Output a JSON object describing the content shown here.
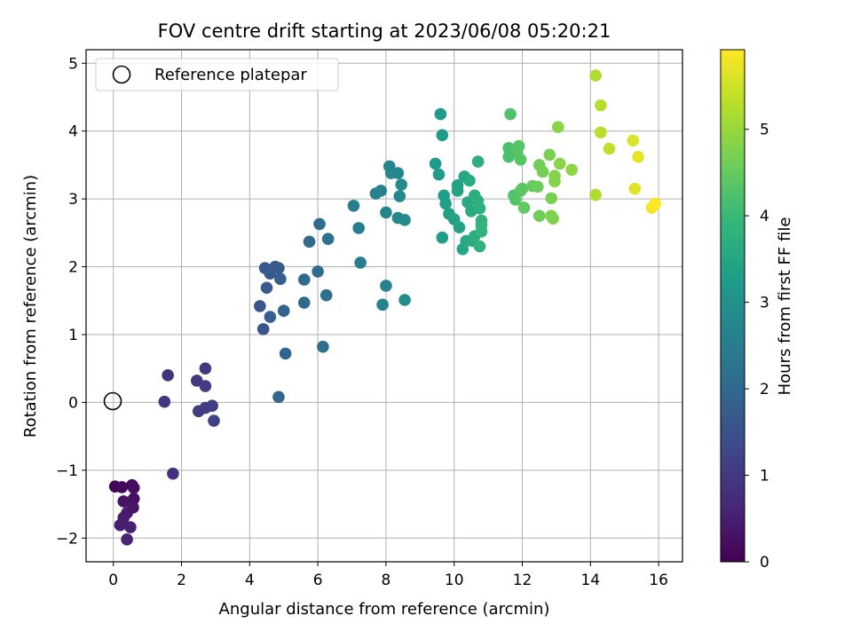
{
  "chart_data": {
    "type": "scatter",
    "title": "FOV centre drift starting at 2023/06/08 05:20:21",
    "xlabel": "Angular distance from reference (arcmin)",
    "ylabel": "Rotation from reference (arcmin)",
    "xlim": [
      -0.8,
      16.7
    ],
    "ylim": [
      -2.35,
      5.2
    ],
    "xticks": [
      0,
      2,
      4,
      6,
      8,
      10,
      12,
      14,
      16
    ],
    "xtick_labels": [
      "0",
      "2",
      "4",
      "6",
      "8",
      "10",
      "12",
      "14",
      "16"
    ],
    "yticks": [
      -2,
      -1,
      0,
      1,
      2,
      3,
      4,
      5
    ],
    "ytick_labels": [
      "−2",
      "−1",
      "0",
      "1",
      "2",
      "3",
      "4",
      "5"
    ],
    "grid": true,
    "legend": {
      "position": "top-left",
      "label": "Reference platepar"
    },
    "reference_point": {
      "x": 0,
      "y": 0
    },
    "colormap": "viridis",
    "colorbar": {
      "label": "Hours from first FF file",
      "range": [
        0,
        5.92
      ],
      "ticks": [
        0,
        1,
        2,
        3,
        4,
        5
      ],
      "tick_labels": [
        "0",
        "1",
        "2",
        "3",
        "4",
        "5"
      ],
      "stops": [
        "#440154",
        "#482878",
        "#3e4989",
        "#31688e",
        "#26828e",
        "#1f9e89",
        "#35b779",
        "#6ece58",
        "#b5de2b",
        "#fde725"
      ]
    },
    "points": [
      {
        "x": 0.05,
        "y": -1.24,
        "h": 0.05
      },
      {
        "x": 0.25,
        "y": -1.25,
        "h": 0.1
      },
      {
        "x": 0.55,
        "y": -1.22,
        "h": 0.15
      },
      {
        "x": 0.6,
        "y": -1.26,
        "h": 0.2
      },
      {
        "x": 0.6,
        "y": -1.42,
        "h": 0.25
      },
      {
        "x": 0.3,
        "y": -1.46,
        "h": 0.3
      },
      {
        "x": 0.58,
        "y": -1.55,
        "h": 0.35
      },
      {
        "x": 0.4,
        "y": -1.63,
        "h": 0.4
      },
      {
        "x": 0.3,
        "y": -1.7,
        "h": 0.45
      },
      {
        "x": 0.2,
        "y": -1.81,
        "h": 0.5
      },
      {
        "x": 0.5,
        "y": -1.84,
        "h": 0.55
      },
      {
        "x": 0.4,
        "y": -2.02,
        "h": 0.6
      },
      {
        "x": 1.75,
        "y": -1.05,
        "h": 0.8
      },
      {
        "x": 1.6,
        "y": 0.4,
        "h": 0.9
      },
      {
        "x": 1.5,
        "y": 0.01,
        "h": 0.95
      },
      {
        "x": 2.45,
        "y": 0.32,
        "h": 1.0
      },
      {
        "x": 2.7,
        "y": 0.5,
        "h": 1.0
      },
      {
        "x": 2.7,
        "y": 0.24,
        "h": 1.05
      },
      {
        "x": 2.5,
        "y": -0.13,
        "h": 1.05
      },
      {
        "x": 2.7,
        "y": -0.08,
        "h": 1.1
      },
      {
        "x": 2.9,
        "y": -0.05,
        "h": 1.1
      },
      {
        "x": 2.95,
        "y": -0.27,
        "h": 1.15
      },
      {
        "x": 4.3,
        "y": 1.42,
        "h": 1.6
      },
      {
        "x": 4.4,
        "y": 1.08,
        "h": 1.6
      },
      {
        "x": 4.45,
        "y": 1.98,
        "h": 1.65
      },
      {
        "x": 4.6,
        "y": 1.9,
        "h": 1.65
      },
      {
        "x": 4.5,
        "y": 1.69,
        "h": 1.7
      },
      {
        "x": 4.75,
        "y": 2.0,
        "h": 1.7
      },
      {
        "x": 4.85,
        "y": 1.98,
        "h": 1.75
      },
      {
        "x": 4.9,
        "y": 1.82,
        "h": 1.8
      },
      {
        "x": 4.6,
        "y": 1.26,
        "h": 1.8
      },
      {
        "x": 5.0,
        "y": 1.35,
        "h": 1.85
      },
      {
        "x": 5.05,
        "y": 0.72,
        "h": 1.9
      },
      {
        "x": 4.85,
        "y": 0.08,
        "h": 1.95
      },
      {
        "x": 5.6,
        "y": 1.81,
        "h": 2.0
      },
      {
        "x": 5.6,
        "y": 1.47,
        "h": 2.0
      },
      {
        "x": 5.75,
        "y": 2.37,
        "h": 2.05
      },
      {
        "x": 6.0,
        "y": 1.93,
        "h": 2.1
      },
      {
        "x": 6.05,
        "y": 2.63,
        "h": 2.1
      },
      {
        "x": 6.15,
        "y": 0.82,
        "h": 2.15
      },
      {
        "x": 6.25,
        "y": 1.58,
        "h": 2.15
      },
      {
        "x": 6.3,
        "y": 2.41,
        "h": 2.2
      },
      {
        "x": 7.05,
        "y": 2.9,
        "h": 2.5
      },
      {
        "x": 7.2,
        "y": 2.57,
        "h": 2.5
      },
      {
        "x": 7.25,
        "y": 2.06,
        "h": 2.55
      },
      {
        "x": 7.7,
        "y": 3.08,
        "h": 2.6
      },
      {
        "x": 7.85,
        "y": 3.12,
        "h": 2.6
      },
      {
        "x": 7.9,
        "y": 1.44,
        "h": 2.65
      },
      {
        "x": 8.0,
        "y": 1.72,
        "h": 2.65
      },
      {
        "x": 8.0,
        "y": 2.8,
        "h": 2.7
      },
      {
        "x": 8.1,
        "y": 3.48,
        "h": 2.7
      },
      {
        "x": 8.15,
        "y": 3.38,
        "h": 2.75
      },
      {
        "x": 8.35,
        "y": 3.38,
        "h": 2.75
      },
      {
        "x": 8.35,
        "y": 2.72,
        "h": 2.8
      },
      {
        "x": 8.4,
        "y": 3.04,
        "h": 2.8
      },
      {
        "x": 8.45,
        "y": 3.21,
        "h": 2.85
      },
      {
        "x": 8.55,
        "y": 2.69,
        "h": 2.85
      },
      {
        "x": 8.55,
        "y": 1.51,
        "h": 2.9
      },
      {
        "x": 9.45,
        "y": 3.52,
        "h": 3.2
      },
      {
        "x": 9.55,
        "y": 3.36,
        "h": 3.2
      },
      {
        "x": 9.6,
        "y": 4.25,
        "h": 3.25
      },
      {
        "x": 9.65,
        "y": 3.94,
        "h": 3.25
      },
      {
        "x": 9.65,
        "y": 2.43,
        "h": 3.3
      },
      {
        "x": 9.7,
        "y": 3.05,
        "h": 3.3
      },
      {
        "x": 9.75,
        "y": 2.93,
        "h": 3.35
      },
      {
        "x": 9.85,
        "y": 2.78,
        "h": 3.35
      },
      {
        "x": 10.0,
        "y": 2.7,
        "h": 3.4
      },
      {
        "x": 10.1,
        "y": 3.2,
        "h": 3.4
      },
      {
        "x": 10.1,
        "y": 3.12,
        "h": 3.45
      },
      {
        "x": 10.15,
        "y": 2.58,
        "h": 3.45
      },
      {
        "x": 10.25,
        "y": 2.26,
        "h": 3.5
      },
      {
        "x": 10.3,
        "y": 3.33,
        "h": 3.5
      },
      {
        "x": 10.35,
        "y": 2.38,
        "h": 3.55
      },
      {
        "x": 10.4,
        "y": 2.95,
        "h": 3.55
      },
      {
        "x": 10.45,
        "y": 3.27,
        "h": 3.6
      },
      {
        "x": 10.5,
        "y": 2.82,
        "h": 3.6
      },
      {
        "x": 10.55,
        "y": 2.38,
        "h": 3.65
      },
      {
        "x": 10.6,
        "y": 2.45,
        "h": 3.65
      },
      {
        "x": 10.6,
        "y": 3.05,
        "h": 3.7
      },
      {
        "x": 10.7,
        "y": 3.55,
        "h": 3.7
      },
      {
        "x": 10.7,
        "y": 2.97,
        "h": 3.75
      },
      {
        "x": 10.75,
        "y": 2.86,
        "h": 3.75
      },
      {
        "x": 10.75,
        "y": 2.3,
        "h": 3.8
      },
      {
        "x": 10.8,
        "y": 2.68,
        "h": 3.8
      },
      {
        "x": 10.8,
        "y": 2.52,
        "h": 3.85
      },
      {
        "x": 10.8,
        "y": 2.61,
        "h": 3.85
      },
      {
        "x": 11.6,
        "y": 3.75,
        "h": 4.2
      },
      {
        "x": 11.6,
        "y": 3.62,
        "h": 4.2
      },
      {
        "x": 11.65,
        "y": 4.25,
        "h": 4.25
      },
      {
        "x": 11.75,
        "y": 3.05,
        "h": 4.25
      },
      {
        "x": 11.8,
        "y": 2.99,
        "h": 4.3
      },
      {
        "x": 11.85,
        "y": 3.68,
        "h": 4.3
      },
      {
        "x": 11.9,
        "y": 3.78,
        "h": 4.35
      },
      {
        "x": 11.95,
        "y": 3.58,
        "h": 4.35
      },
      {
        "x": 11.95,
        "y": 3.12,
        "h": 4.4
      },
      {
        "x": 12.0,
        "y": 3.15,
        "h": 4.4
      },
      {
        "x": 12.05,
        "y": 2.87,
        "h": 4.45
      },
      {
        "x": 12.3,
        "y": 3.19,
        "h": 4.5
      },
      {
        "x": 12.45,
        "y": 3.18,
        "h": 4.55
      },
      {
        "x": 12.5,
        "y": 2.75,
        "h": 4.6
      },
      {
        "x": 12.5,
        "y": 3.5,
        "h": 4.6
      },
      {
        "x": 12.6,
        "y": 3.4,
        "h": 4.65
      },
      {
        "x": 12.8,
        "y": 3.65,
        "h": 4.7
      },
      {
        "x": 12.85,
        "y": 3.01,
        "h": 4.7
      },
      {
        "x": 12.85,
        "y": 2.75,
        "h": 4.75
      },
      {
        "x": 12.9,
        "y": 2.71,
        "h": 4.75
      },
      {
        "x": 12.95,
        "y": 3.34,
        "h": 4.8
      },
      {
        "x": 12.95,
        "y": 3.26,
        "h": 4.8
      },
      {
        "x": 13.05,
        "y": 4.06,
        "h": 4.85
      },
      {
        "x": 13.1,
        "y": 3.52,
        "h": 4.85
      },
      {
        "x": 13.45,
        "y": 3.43,
        "h": 4.9
      },
      {
        "x": 14.15,
        "y": 4.82,
        "h": 5.2
      },
      {
        "x": 14.15,
        "y": 3.06,
        "h": 5.2
      },
      {
        "x": 14.3,
        "y": 4.38,
        "h": 5.25
      },
      {
        "x": 14.3,
        "y": 3.98,
        "h": 5.3
      },
      {
        "x": 14.55,
        "y": 3.74,
        "h": 5.35
      },
      {
        "x": 15.25,
        "y": 3.86,
        "h": 5.6
      },
      {
        "x": 15.3,
        "y": 3.15,
        "h": 5.65
      },
      {
        "x": 15.4,
        "y": 3.62,
        "h": 5.7
      },
      {
        "x": 15.8,
        "y": 2.87,
        "h": 5.85
      },
      {
        "x": 15.9,
        "y": 2.93,
        "h": 5.9
      }
    ]
  }
}
